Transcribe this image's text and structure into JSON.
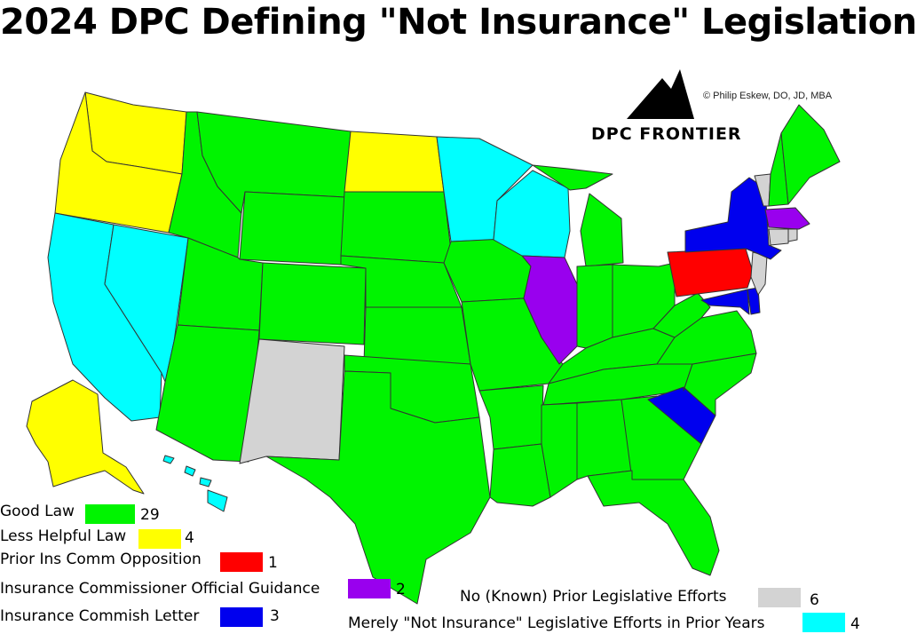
{
  "title": "2024 DPC Defining \"Not Insurance\" Legislation",
  "credit": "© Philip Eskew, DO, JD, MBA",
  "brand": "DPC FRONTIER",
  "colors": {
    "good_law": "#00f400",
    "less_helpful": "#ffff00",
    "opposition": "#ff0000",
    "guidance": "#9900ee",
    "letter": "#0000ee",
    "no_efforts": "#d3d3d3",
    "prior_efforts": "#00ffff",
    "border": "#333333"
  },
  "legend": [
    {
      "key": "good_law",
      "label": "Good Law",
      "count": "29"
    },
    {
      "key": "less_helpful",
      "label": "Less Helpful Law",
      "count": "4"
    },
    {
      "key": "opposition",
      "label": "Prior Ins Comm Opposition",
      "count": "1"
    },
    {
      "key": "guidance",
      "label": "Insurance Commissioner Official Guidance",
      "count": "2"
    },
    {
      "key": "letter",
      "label": "Insurance Commish Letter",
      "count": "3"
    },
    {
      "key": "no_efforts",
      "label": "No (Known) Prior Legislative Efforts",
      "count": "6"
    },
    {
      "key": "prior_efforts",
      "label": "Merely \"Not Insurance\" Legislative Efforts in Prior Years",
      "count": "4"
    }
  ],
  "logo_icon": "mountain-logo-icon"
}
